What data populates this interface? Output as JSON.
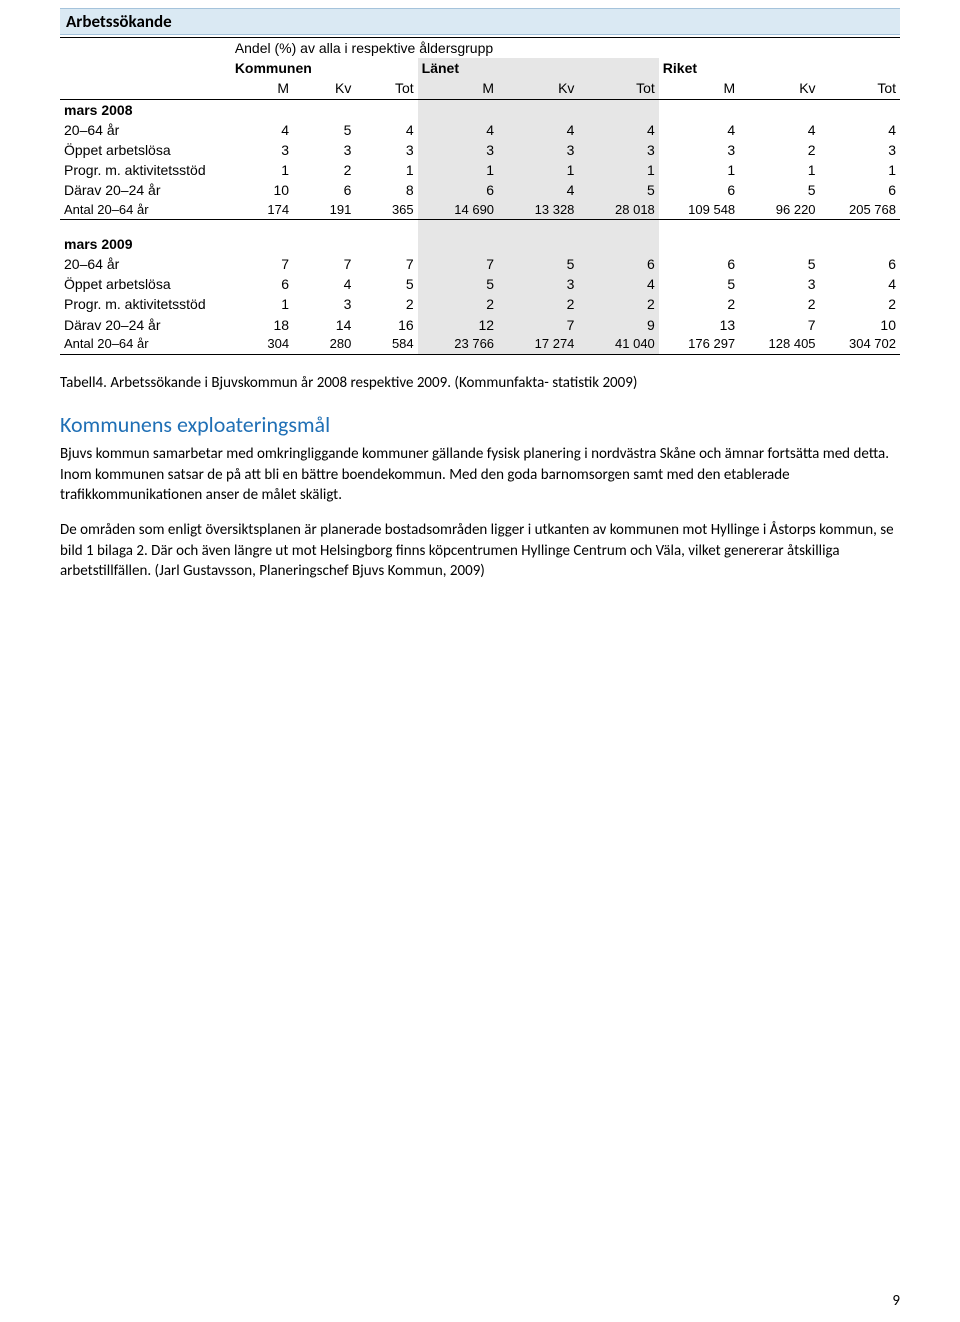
{
  "table": {
    "title": "Arbetssökande",
    "topCaption": "Andel (%) av alla i respektive åldersgrupp",
    "groups": [
      "Kommunen",
      "Länet",
      "Riket"
    ],
    "subheads": [
      "M",
      "Kv",
      "Tot"
    ],
    "sections": [
      {
        "heading": "mars 2008",
        "rows": [
          {
            "label": "20–64 år",
            "k": [
              "4",
              "5",
              "4"
            ],
            "l": [
              "4",
              "4",
              "4"
            ],
            "r": [
              "4",
              "4",
              "4"
            ]
          },
          {
            "label": "Öppet arbetslösa",
            "k": [
              "3",
              "3",
              "3"
            ],
            "l": [
              "3",
              "3",
              "3"
            ],
            "r": [
              "3",
              "2",
              "3"
            ]
          },
          {
            "label": "Progr. m. aktivitetsstöd",
            "k": [
              "1",
              "2",
              "1"
            ],
            "l": [
              "1",
              "1",
              "1"
            ],
            "r": [
              "1",
              "1",
              "1"
            ]
          },
          {
            "label": "Därav 20–24 år",
            "k": [
              "10",
              "6",
              "8"
            ],
            "l": [
              "6",
              "4",
              "5"
            ],
            "r": [
              "6",
              "5",
              "6"
            ]
          },
          {
            "label": "Antal 20–64 år",
            "k": [
              "174",
              "191",
              "365"
            ],
            "l": [
              "14 690",
              "13 328",
              "28 018"
            ],
            "r": [
              "109 548",
              "96 220",
              "205 768"
            ]
          }
        ]
      },
      {
        "heading": "mars 2009",
        "rows": [
          {
            "label": "20–64 år",
            "k": [
              "7",
              "7",
              "7"
            ],
            "l": [
              "7",
              "5",
              "6"
            ],
            "r": [
              "6",
              "5",
              "6"
            ]
          },
          {
            "label": "Öppet arbetslösa",
            "k": [
              "6",
              "4",
              "5"
            ],
            "l": [
              "5",
              "3",
              "4"
            ],
            "r": [
              "5",
              "3",
              "4"
            ]
          },
          {
            "label": "Progr. m. aktivitetsstöd",
            "k": [
              "1",
              "3",
              "2"
            ],
            "l": [
              "2",
              "2",
              "2"
            ],
            "r": [
              "2",
              "2",
              "2"
            ]
          },
          {
            "label": "Därav 20–24 år",
            "k": [
              "18",
              "14",
              "16"
            ],
            "l": [
              "12",
              "7",
              "9"
            ],
            "r": [
              "13",
              "7",
              "10"
            ]
          },
          {
            "label": "Antal 20–64 år",
            "k": [
              "304",
              "280",
              "584"
            ],
            "l": [
              "23 766",
              "17 274",
              "41 040"
            ],
            "r": [
              "176 297",
              "128 405",
              "304 702"
            ]
          }
        ]
      }
    ]
  },
  "caption": "Tabell4. Arbetssökande i Bjuvskommun år 2008 respektive 2009. (Kommunfakta- statistik 2009)",
  "section": {
    "heading": "Kommunens exploateringsmål",
    "p1": "Bjuvs kommun samarbetar med omkringliggande kommuner gällande fysisk planering i nordvästra Skåne och ämnar fortsätta med detta. Inom kommunen satsar de på att bli en bättre boendekommun. Med den goda barnomsorgen samt med den etablerade trafikkommunikationen anser de målet skäligt.",
    "p2": "De områden som enligt översiktsplanen är planerade bostadsområden ligger i utkanten av kommunen mot Hyllinge i Åstorps kommun, se bild 1 bilaga 2. Där och även längre ut mot Helsingborg finns köpcentrumen Hyllinge Centrum och Väla, vilket genererar åtskilliga arbetstillfällen. (Jarl Gustavsson, Planeringschef Bjuvs Kommun, 2009)"
  },
  "pageNumber": "9",
  "colors": {
    "titleBarBg": "#dae9f3",
    "bandBg": "#e6e6e6",
    "headingColor": "#1f6fb5"
  }
}
